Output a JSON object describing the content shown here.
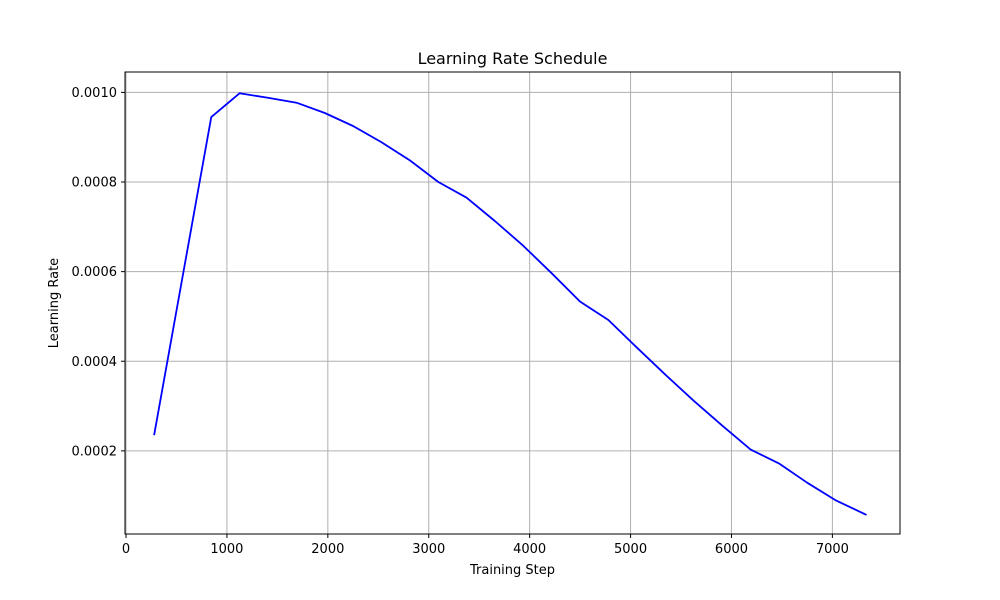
{
  "chart_data": {
    "type": "line",
    "title": "Learning Rate Schedule",
    "xlabel": "Training Step",
    "ylabel": "Learning Rate",
    "xlim": [
      -10,
      7670
    ],
    "ylim": [
      1.45e-05,
      0.0010455
    ],
    "xticks": [
      0,
      1000,
      2000,
      3000,
      4000,
      5000,
      6000,
      7000
    ],
    "xtick_labels": [
      "0",
      "1000",
      "2000",
      "3000",
      "4000",
      "5000",
      "6000",
      "7000"
    ],
    "yticks": [
      0.0002,
      0.0004,
      0.0006,
      0.0008,
      0.001
    ],
    "ytick_labels": [
      "0.0002",
      "0.0004",
      "0.0006",
      "0.0008",
      "0.0010"
    ],
    "grid": true,
    "series": [
      {
        "color": "#0000ff",
        "x": [
          280,
          845,
          1125,
          1405,
          1690,
          1970,
          2250,
          2530,
          2815,
          3095,
          3375,
          3655,
          3940,
          4220,
          4500,
          4780,
          5065,
          5345,
          5625,
          5905,
          6190,
          6470,
          6750,
          7030,
          7330
        ],
        "y": [
          0.000237,
          0.000945,
          0.000998,
          0.000988,
          0.000977,
          0.000954,
          0.000925,
          0.000889,
          0.000848,
          0.0008,
          0.000765,
          0.000713,
          0.000657,
          0.000596,
          0.000533,
          0.000492,
          0.00043,
          0.00037,
          0.000312,
          0.000257,
          0.000203,
          0.000172,
          0.000129,
          9e-05,
          5.8e-05
        ]
      }
    ]
  }
}
